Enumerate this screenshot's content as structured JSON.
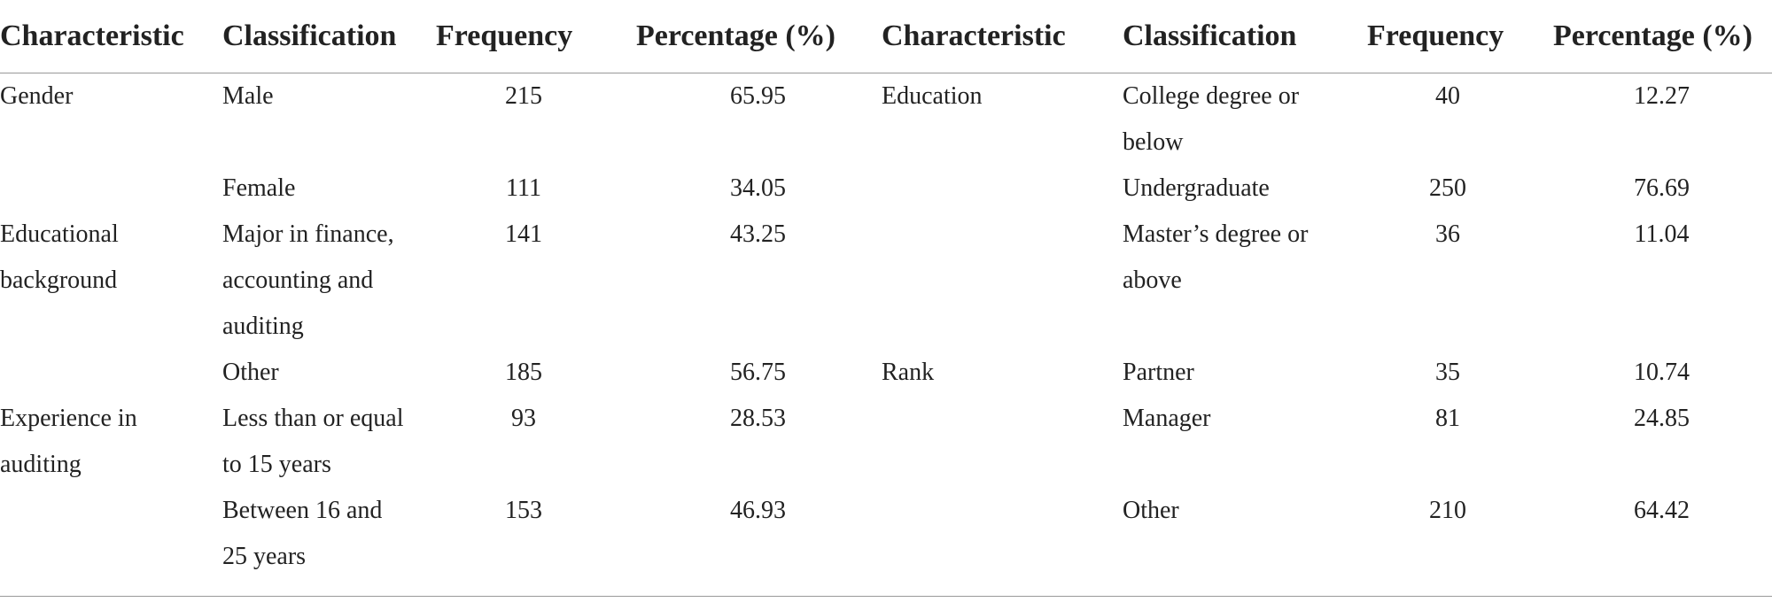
{
  "table": {
    "header": [
      "Characteristic",
      "Classification",
      "Frequency",
      "Percentage (%)",
      "Characteristic",
      "Classification",
      "Frequency",
      "Percentage (%)"
    ],
    "rows": [
      [
        "Gender",
        "Male",
        "215",
        "65.95",
        "Education",
        "College degree or below",
        "40",
        "12.27"
      ],
      [
        null,
        "Female",
        "111",
        "34.05",
        null,
        "Undergraduate",
        "250",
        "76.69"
      ],
      [
        "Educational background",
        "Major in finance, accounting and auditing",
        "141",
        "43.25",
        null,
        "Master’s degree or above",
        "36",
        "11.04"
      ],
      [
        null,
        "Other",
        "185",
        "56.75",
        "Rank",
        "Partner",
        "35",
        "10.74"
      ],
      [
        "Experience in auditing",
        "Less than or equal to 15 years",
        "93",
        "28.53",
        null,
        "Manager",
        "81",
        "24.85"
      ],
      [
        null,
        "Between 16 and 25 years",
        "153",
        "46.93",
        null,
        "Other",
        "210",
        "64.42"
      ]
    ]
  }
}
